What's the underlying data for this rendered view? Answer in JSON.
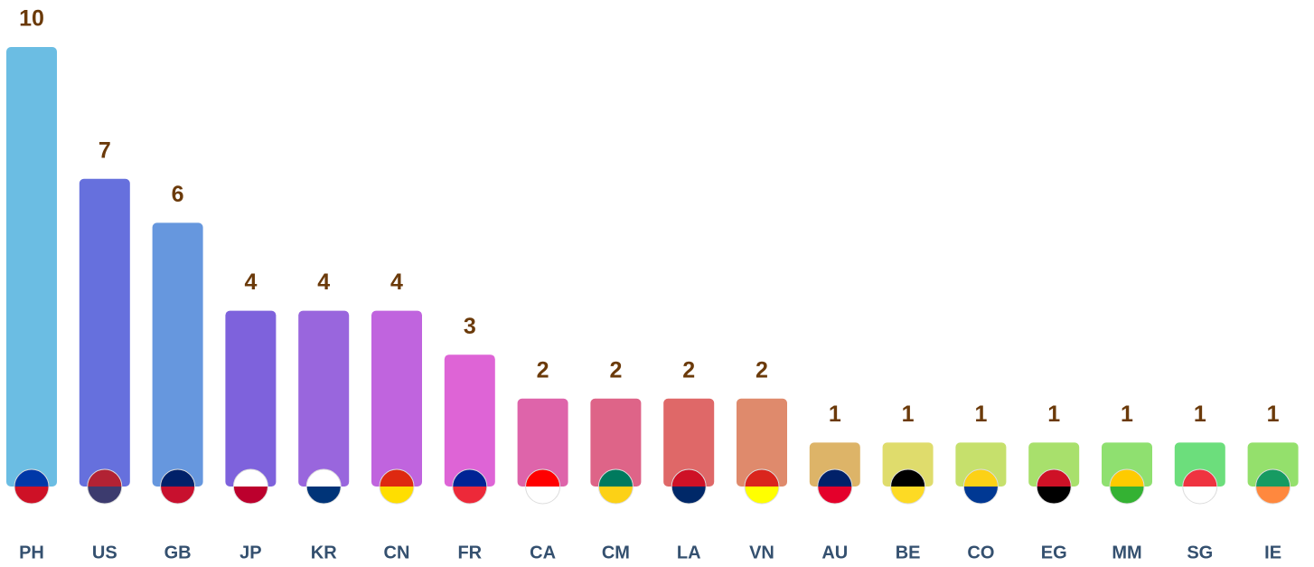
{
  "chart_data": {
    "type": "bar",
    "categories": [
      "PH",
      "US",
      "GB",
      "JP",
      "KR",
      "CN",
      "FR",
      "CA",
      "CM",
      "LA",
      "VN",
      "AU",
      "BE",
      "CO",
      "EG",
      "MM",
      "SG",
      "IE"
    ],
    "values": [
      10,
      7,
      6,
      4,
      4,
      4,
      3,
      2,
      2,
      2,
      2,
      1,
      1,
      1,
      1,
      1,
      1,
      1
    ],
    "colors": [
      "#6bbde3",
      "#6670dd",
      "#6697de",
      "#7e62dc",
      "#9966dd",
      "#c064de",
      "#de64d6",
      "#de64aa",
      "#de6488",
      "#df6868",
      "#df8a6c",
      "#ddb468",
      "#dfdc6c",
      "#c6e06c",
      "#a8e06c",
      "#8fe070",
      "#6cde7c",
      "#94e06c"
    ]
  }
}
